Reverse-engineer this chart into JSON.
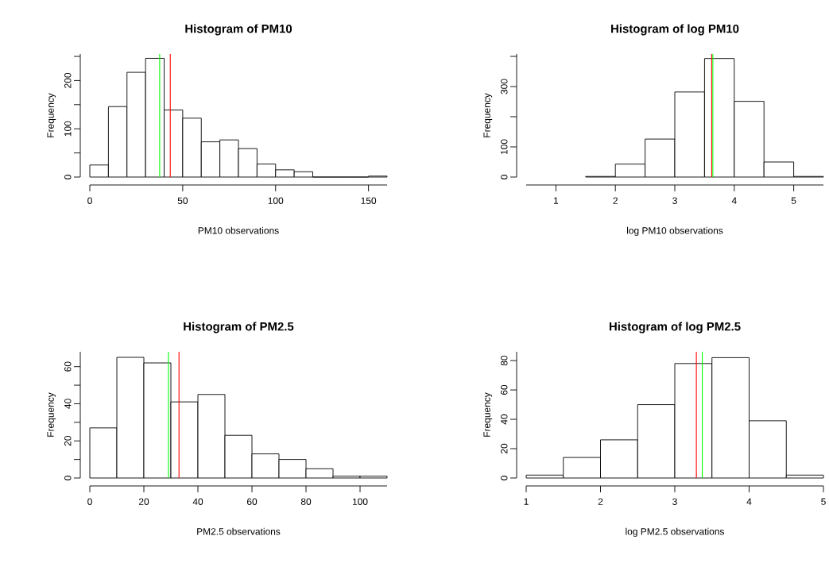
{
  "chart_data": [
    {
      "type": "histogram",
      "title": "Histogram of PM10",
      "xlabel": "PM10 observations",
      "ylabel": "Frequency",
      "color": "#ffffff",
      "bins": [
        0,
        10,
        20,
        30,
        40,
        50,
        60,
        70,
        80,
        90,
        100,
        110,
        120,
        130,
        140,
        150,
        160
      ],
      "values": [
        25,
        146,
        217,
        246,
        139,
        122,
        73,
        77,
        59,
        27,
        15,
        11,
        0,
        0,
        0,
        2
      ],
      "xlim": [
        0,
        160
      ],
      "ylim": [
        0,
        255
      ],
      "xticks": [
        0,
        50,
        100,
        150
      ],
      "yticks": [
        0,
        {
          "value": 50,
          "label": null
        },
        100,
        {
          "value": 150,
          "label": null
        },
        200,
        {
          "value": 250,
          "label": null
        }
      ],
      "ref_lines": [
        {
          "axis": "x",
          "value": 37.6,
          "color": "#00ff00"
        },
        {
          "axis": "x",
          "value": 43.3,
          "color": "#ff0000"
        }
      ]
    },
    {
      "type": "histogram",
      "title": "Histogram of log PM10",
      "xlabel": "log PM10 observations",
      "ylabel": "Frequency",
      "color": "#ffffff",
      "bins": [
        0.5,
        1,
        1.5,
        2,
        2.5,
        3,
        3.5,
        4,
        4.5,
        5,
        5.5
      ],
      "values": [
        null,
        null,
        2,
        43,
        126,
        282,
        393,
        251,
        50,
        2
      ],
      "xlim": [
        0.5,
        5.5
      ],
      "ylim": [
        0,
        408
      ],
      "xticks": [
        1,
        2,
        3,
        4,
        5
      ],
      "yticks": [
        0,
        100,
        {
          "value": 200,
          "label": null
        },
        300,
        {
          "value": 400,
          "label": null
        }
      ],
      "ref_lines": [
        {
          "axis": "x",
          "value": 3.62,
          "color": "#ff0000"
        },
        {
          "axis": "x",
          "value": 3.64,
          "color": "#00ff00"
        }
      ]
    },
    {
      "type": "histogram",
      "title": "Histogram of PM2.5",
      "xlabel": "PM2.5 observations",
      "ylabel": "Frequency",
      "color": "#ffffff",
      "bins": [
        0,
        10,
        20,
        30,
        40,
        50,
        60,
        70,
        80,
        90,
        100,
        110
      ],
      "values": [
        27,
        65,
        62,
        41,
        45,
        23,
        13,
        10,
        5,
        1,
        1
      ],
      "xlim": [
        0,
        110
      ],
      "ylim": [
        0,
        68
      ],
      "xticks": [
        0,
        20,
        40,
        60,
        80,
        100
      ],
      "yticks": [
        0,
        {
          "value": 10,
          "label": null
        },
        20,
        {
          "value": 30,
          "label": null
        },
        40,
        {
          "value": 50,
          "label": null
        },
        60
      ],
      "ref_lines": [
        {
          "axis": "x",
          "value": 29.1,
          "color": "#00ff00"
        },
        {
          "axis": "x",
          "value": 33.0,
          "color": "#ff0000"
        }
      ]
    },
    {
      "type": "histogram",
      "title": "Histogram of log PM2.5",
      "xlabel": "log PM2.5 observations",
      "ylabel": "Frequency",
      "color": "#ffffff",
      "bins": [
        1,
        1.5,
        2,
        2.5,
        3,
        3.5,
        4,
        4.5,
        5
      ],
      "values": [
        2,
        14,
        26,
        50,
        78,
        82,
        39,
        2
      ],
      "xlim": [
        1,
        5
      ],
      "ylim": [
        0,
        86
      ],
      "xticks": [
        1,
        2,
        3,
        4,
        5
      ],
      "yticks": [
        0,
        20,
        40,
        60,
        80
      ],
      "ref_lines": [
        {
          "axis": "x",
          "value": 3.29,
          "color": "#ff0000"
        },
        {
          "axis": "x",
          "value": 3.37,
          "color": "#00ff00"
        }
      ]
    }
  ]
}
